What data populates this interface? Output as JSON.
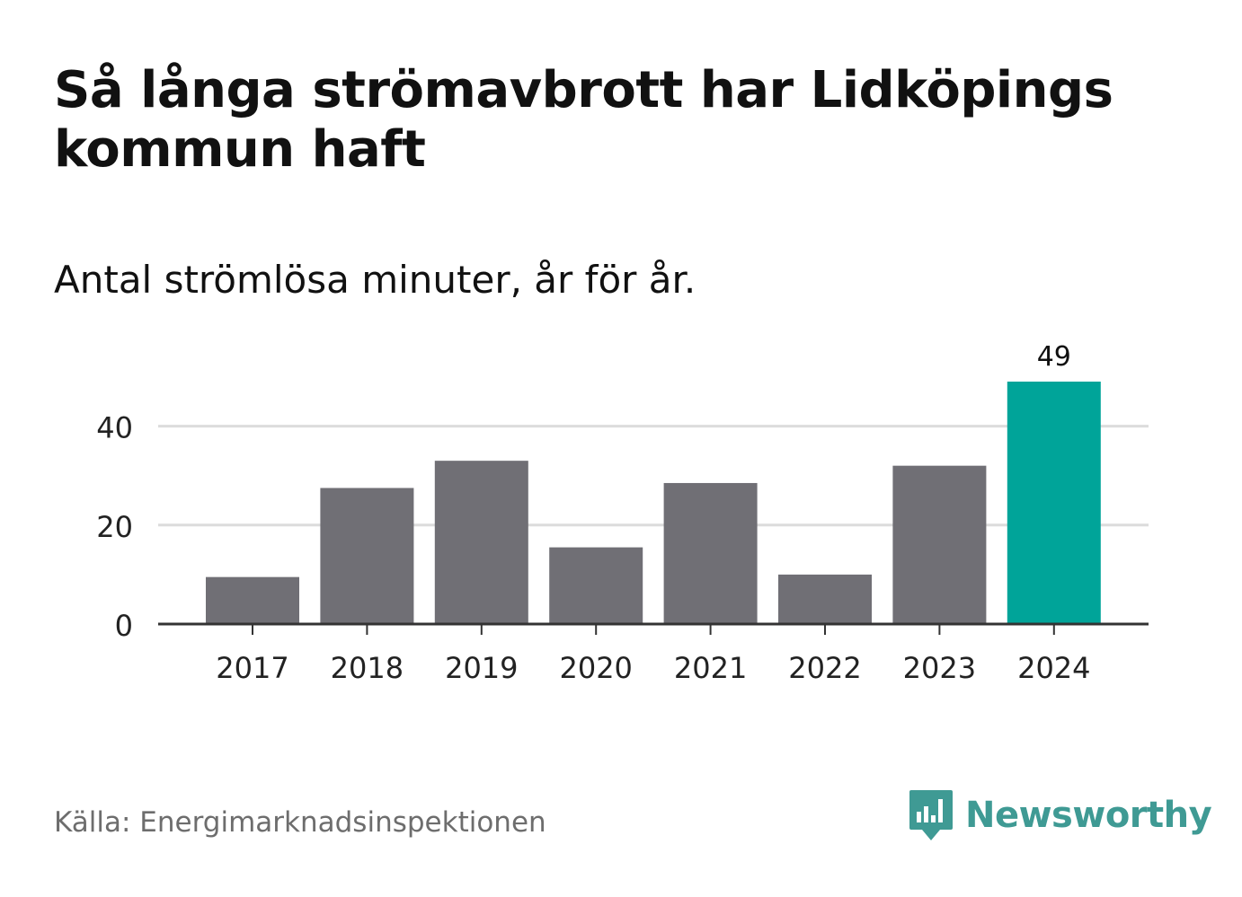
{
  "title": "Så långa strömavbrott har Lidköpings kommun haft",
  "subtitle": "Antal strömlösa minuter, år för år.",
  "source": "Källa: Energimarknadsinspektionen",
  "brand": {
    "name": "Newsworthy",
    "icon": "newsworthy-logo-icon"
  },
  "colors": {
    "bar": "#706f75",
    "highlight": "#00a499",
    "grid": "#dcdcdc",
    "axis": "#333333",
    "brand": "#3f9a94"
  },
  "chart_data": {
    "type": "bar",
    "title": "Så långa strömavbrott har Lidköpings kommun haft",
    "subtitle": "Antal strömlösa minuter, år för år.",
    "categories": [
      "2017",
      "2018",
      "2019",
      "2020",
      "2021",
      "2022",
      "2023",
      "2024"
    ],
    "values": [
      9.5,
      27.5,
      33,
      15.5,
      28.5,
      10,
      32,
      49
    ],
    "highlight_index": 7,
    "data_labels": [
      {
        "index": 7,
        "text": "49"
      }
    ],
    "ylim": [
      0,
      49
    ],
    "yticks": [
      0,
      20,
      40
    ],
    "grid": true,
    "xlabel": "",
    "ylabel": ""
  }
}
